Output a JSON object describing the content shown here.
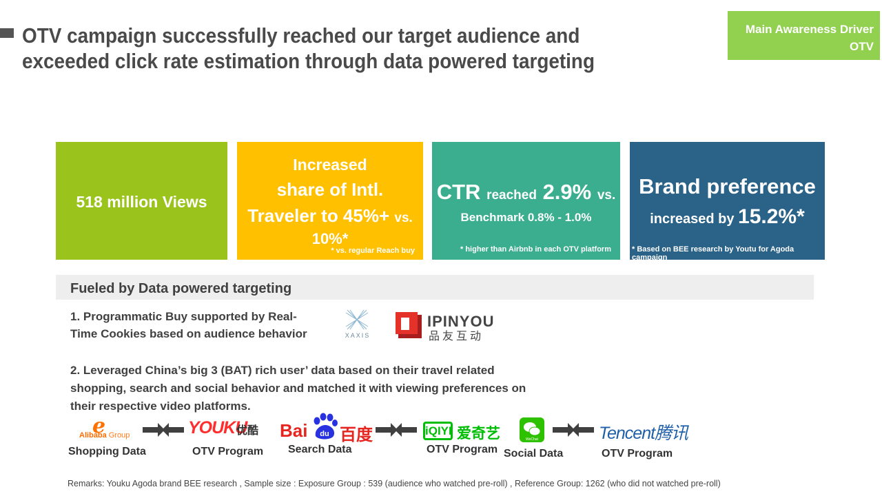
{
  "header": {
    "title_line1": "OTV campaign successfully reached our target audience and",
    "title_line2": "exceeded click rate estimation through data powered targeting",
    "driver_line1": "Main Awareness Driver",
    "driver_line2": "OTV"
  },
  "kpis": {
    "views": "518 million Views",
    "share_line1": "Increased",
    "share_line2": "share of Intl.",
    "share_line3": "Traveler to 45%+",
    "share_vs": "vs.",
    "share_line4": "10%*",
    "share_note": "* vs. regular Reach buy",
    "ctr_label": "CTR",
    "ctr_reached": "reached",
    "ctr_value": "2.9%",
    "ctr_vs": "vs.",
    "ctr_benchmark": "Benchmark 0.8% - 1.0%",
    "ctr_note": "* higher than Airbnb in each OTV platform",
    "brand_line1": "Brand preference",
    "brand_increased": "increased by",
    "brand_value": "15.2%*",
    "brand_note": "* Based on BEE research by Youtu for Agoda campaign"
  },
  "targeting": {
    "heading": "Fueled by Data powered targeting",
    "point1_line1": "1. Programmatic Buy supported by Real-",
    "point1_line2": "Time Cookies based on audience behavior",
    "point2_line1": "2. Leveraged China’s big 3 (BAT) rich user’ data based on their travel related",
    "point2_line2": "shopping, search and social behavior and matched it with viewing preferences on",
    "point2_line3": "their respective video platforms."
  },
  "logos": {
    "xaxis": "XAXIS",
    "ipinyou": "IPINYOU",
    "ipinyou_cn": "品友互动",
    "alibaba_icon": "e",
    "alibaba_word": "Alibaba",
    "alibaba_group": "Group",
    "youku": "YOUKU",
    "youku_cn": "优酷",
    "baidu": "Bai",
    "baidu_du": "du",
    "baidu_cn": "百度",
    "iqiyi": "iQIYI",
    "iqiyi_cn": "爱奇艺",
    "wechat": "WeChat",
    "tencent": "Tencent腾讯"
  },
  "captions": {
    "shopping": "Shopping Data",
    "otv1": "OTV Program",
    "search": "Search Data",
    "otv2": "OTV Program",
    "social": "Social Data",
    "otv3": "OTV Program"
  },
  "remarks": "Remarks: Youku Agoda brand BEE research , Sample  size : Exposure Group : 539  (audience  who watched pre-roll) , Reference  Group:  1262 (who did not watched pre-roll)",
  "colors": {
    "green": "#9ac31c",
    "yellow": "#ffc000",
    "teal": "#3aae8e",
    "blue": "#2a6288",
    "driver": "#92d050"
  }
}
